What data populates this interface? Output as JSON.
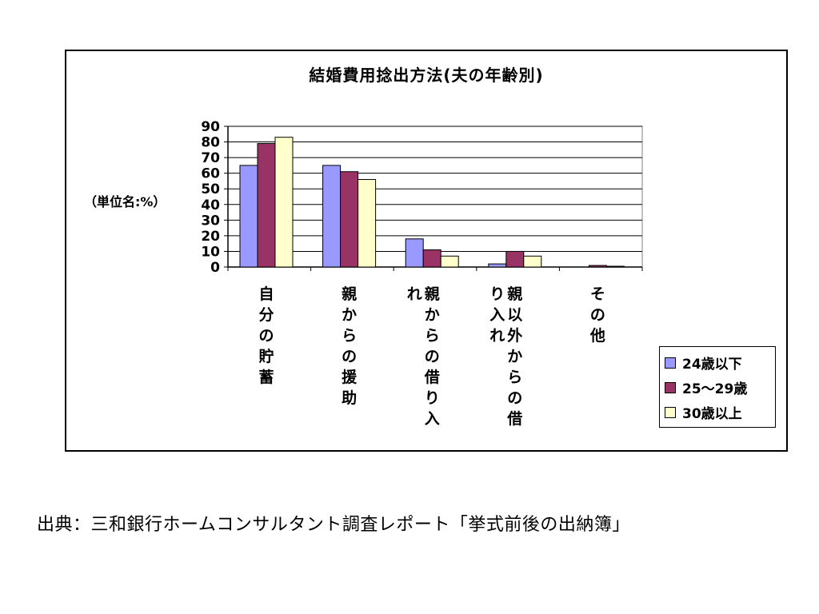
{
  "chart_data": {
    "type": "bar",
    "title": "結婚費用捻出方法(夫の年齢別)",
    "ylabel": "（単位名:%）",
    "ylim": [
      0,
      90
    ],
    "yticks": [
      0,
      10,
      20,
      30,
      40,
      50,
      60,
      70,
      80,
      90
    ],
    "grid": true,
    "legend_position": "bottom-right",
    "categories": [
      "自分の貯蓄",
      "親からの援助",
      "親からの借り入れ",
      "親以外からの借り入れ",
      "その他"
    ],
    "category_label_columns": [
      [
        "自分の貯蓄"
      ],
      [
        "親からの援助"
      ],
      [
        "親からの借り入",
        "れ"
      ],
      [
        "親以外からの借",
        "り入れ"
      ],
      [
        "その他"
      ]
    ],
    "series": [
      {
        "name": "24歳以下",
        "color": "#9999ff",
        "values": [
          65,
          65,
          18,
          2,
          0
        ]
      },
      {
        "name": "25～29歳",
        "color": "#993366",
        "values": [
          79,
          61,
          11,
          10,
          1
        ]
      },
      {
        "name": "30歳以上",
        "color": "#ffffcc",
        "values": [
          83,
          56,
          7,
          7,
          0.5
        ]
      }
    ]
  },
  "source_note": "出典：三和銀行ホームコンサルタント調査レポート「挙式前後の出納簿」"
}
